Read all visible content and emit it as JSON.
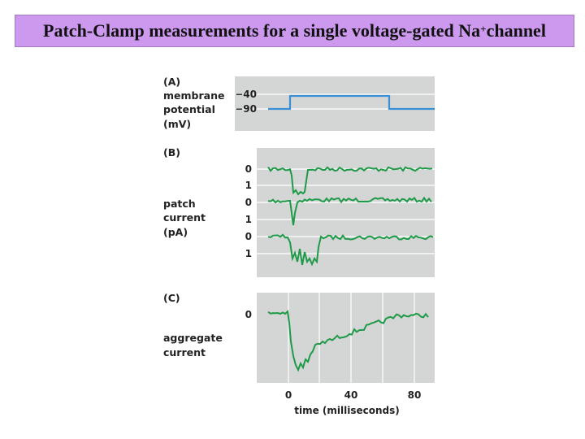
{
  "title": {
    "prefix": "Patch-Clamp measurements for a single voltage-gated Na",
    "superscript": "+",
    "suffix": "channel"
  },
  "panel_a": {
    "letter": "(A)",
    "label_lines": [
      "membrane",
      "potential",
      "(mV)"
    ],
    "ticks": [
      "−40",
      "−90"
    ],
    "step_color": "#3a8fd6"
  },
  "panel_b": {
    "letter": "(B)",
    "label_lines": [
      "patch",
      "current",
      "(pA)"
    ],
    "ticks": [
      "0",
      "1",
      "0",
      "1",
      "0",
      "1"
    ],
    "trace_color": "#1e9a48"
  },
  "panel_c": {
    "letter": "(C)",
    "label_lines": [
      "aggregate",
      "current"
    ],
    "y_tick": "0",
    "x_ticks": [
      "0",
      "40",
      "80"
    ],
    "x_label": "time (milliseconds)",
    "trace_color": "#1e9a48"
  },
  "colors": {
    "panel_bg": "#d4d6d5",
    "grid": "#ffffff",
    "title_bg": "#cc99ee"
  }
}
